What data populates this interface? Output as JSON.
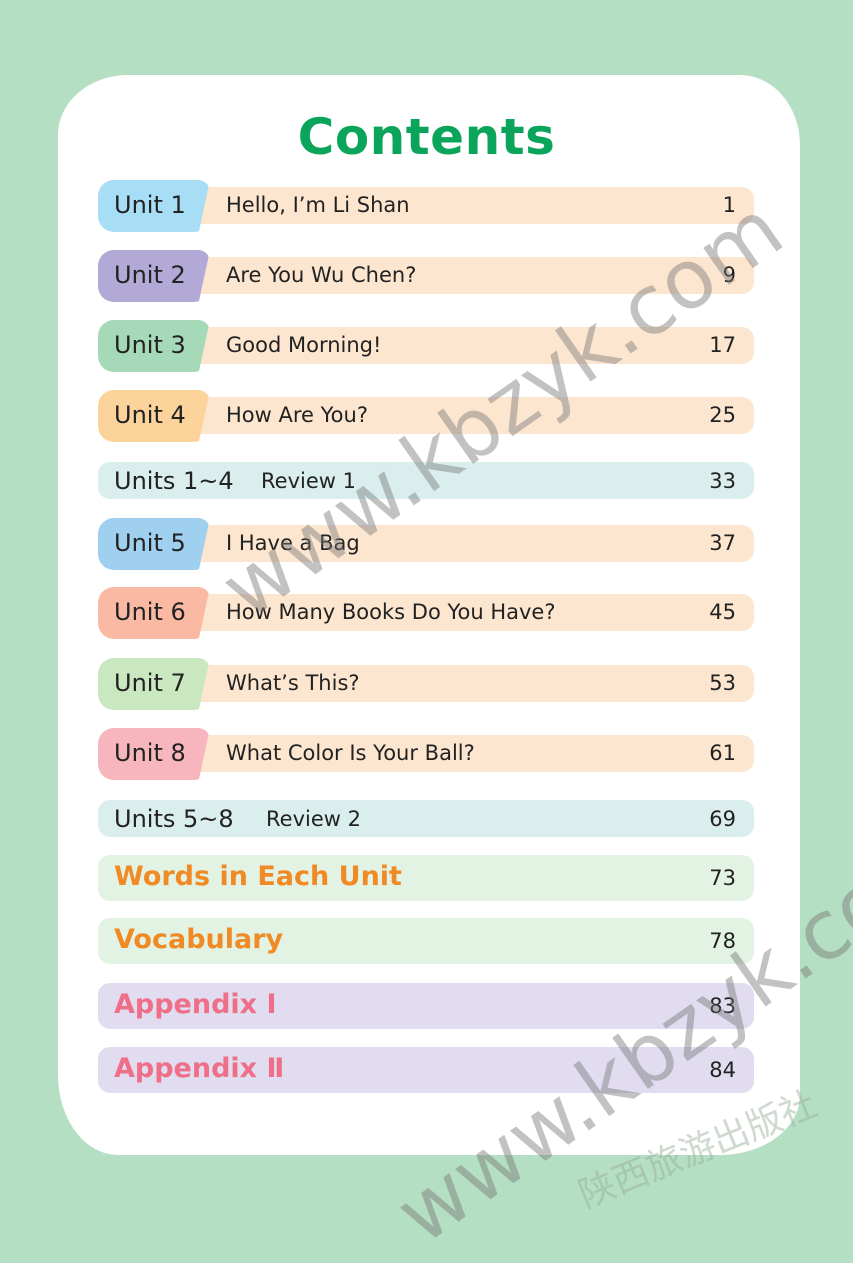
{
  "title": "Contents",
  "units": [
    {
      "label": "Unit 1",
      "title": "Hello, I’m Li Shan",
      "page": "1",
      "color": "#a8def5"
    },
    {
      "label": "Unit 2",
      "title": "Are You Wu Chen?",
      "page": "9",
      "color": "#b3a9d6"
    },
    {
      "label": "Unit 3",
      "title": "Good Morning!",
      "page": "17",
      "color": "#a6d9b8"
    },
    {
      "label": "Unit 4",
      "title": "How Are You?",
      "page": "25",
      "color": "#fdd39c"
    },
    {
      "label": "Unit 5",
      "title": "I Have a Bag",
      "page": "37",
      "color": "#9fd0f0"
    },
    {
      "label": "Unit 6",
      "title": "How Many Books Do You Have?",
      "page": "45",
      "color": "#f9b9a3"
    },
    {
      "label": "Unit 7",
      "title": "What’s This?",
      "page": "53",
      "color": "#c9e8c0"
    },
    {
      "label": "Unit 8",
      "title": "What Color Is Your Ball?",
      "page": "61",
      "color": "#f7b5bd"
    }
  ],
  "reviews": [
    {
      "label": "Units 1~4",
      "title": "Review 1",
      "page": "33"
    },
    {
      "label": "Units 5~8",
      "title": "Review 2",
      "page": "69"
    }
  ],
  "extras": [
    {
      "label": "Words in Each Unit",
      "page": "73"
    },
    {
      "label": "Vocabulary",
      "page": "78"
    },
    {
      "label": "Appendix Ⅰ",
      "page": "83"
    },
    {
      "label": "Appendix Ⅱ",
      "page": "84"
    }
  ],
  "colors": {
    "background": "#b5dfc3",
    "title": "#0aa55a",
    "unit_bar": "#fde6cf",
    "review_bar": "#dbeeee",
    "extras_bar": "#e2f3e4",
    "extras_text": "#f08a24",
    "appendix_bar": "#e1dcef",
    "appendix_text": "#ef6f88"
  },
  "watermarks": {
    "site": "www.kbzyk.com",
    "publisher": "陕西旅游出版社"
  }
}
